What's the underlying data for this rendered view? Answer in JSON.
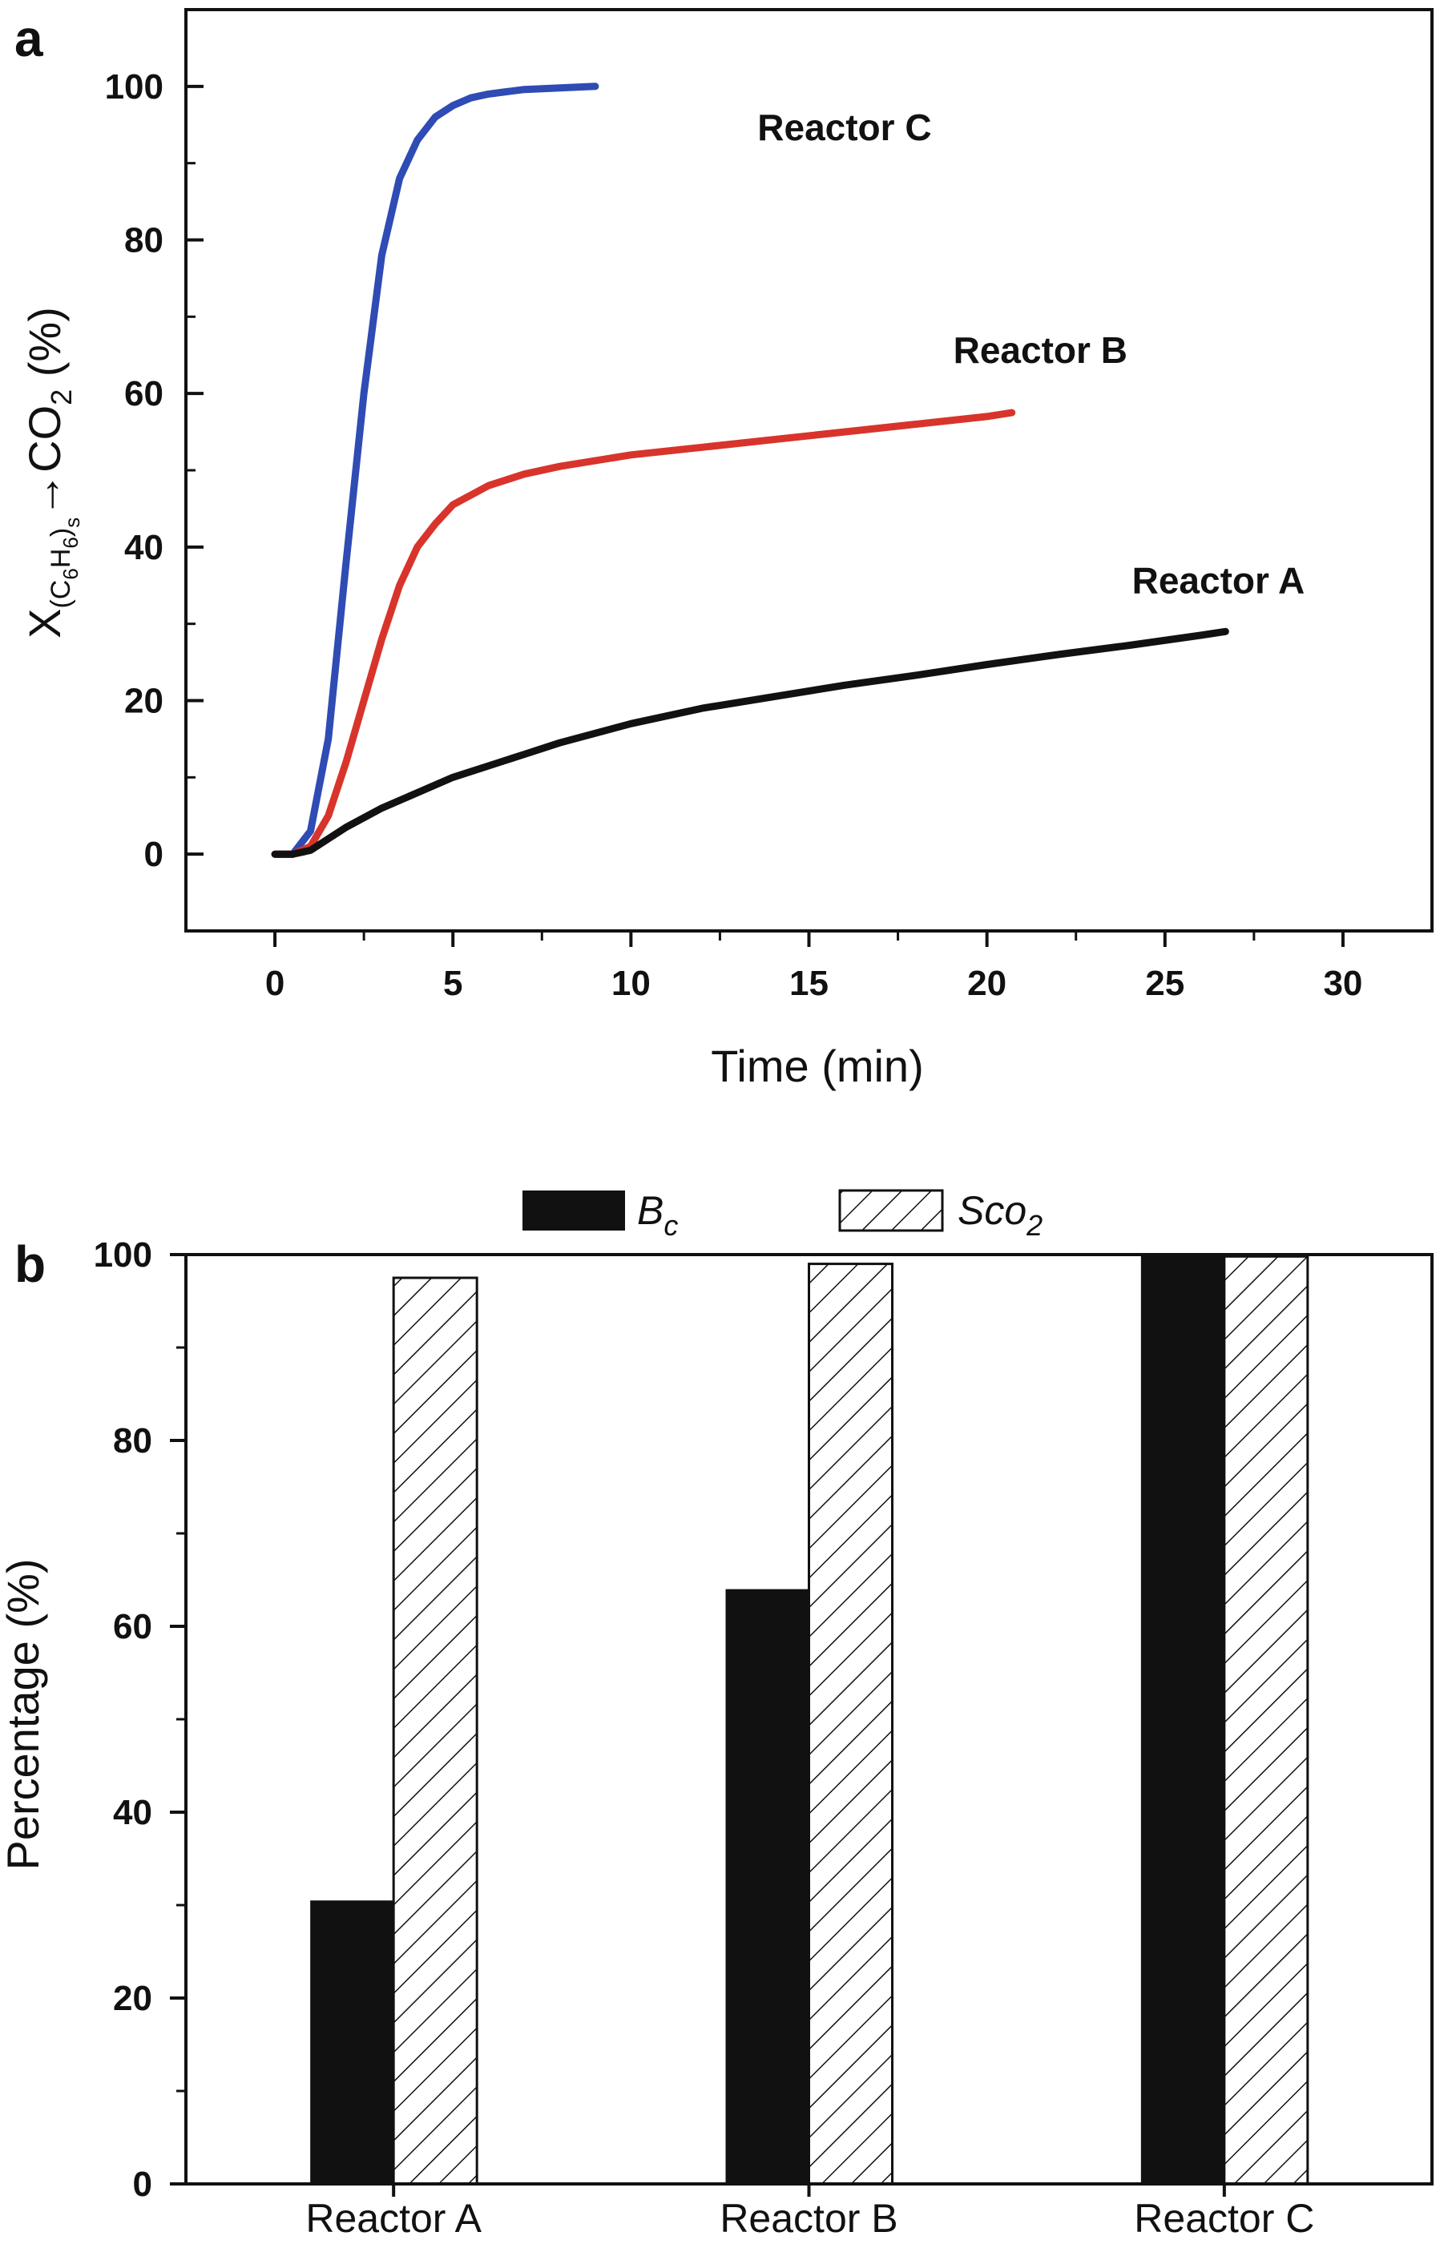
{
  "chart_data": [
    {
      "panel": "a",
      "type": "line",
      "xlabel": "Time (min)",
      "ylabel": {
        "base": "X",
        "sub1": "(C",
        "sub2": "6",
        "sub3": "H",
        "sub4": "6",
        "sub5": ")",
        "sub6": "s",
        "arrow": "→",
        "product": "CO",
        "product_sub": "2",
        "unit": " (%)"
      },
      "xlim": [
        -2.5,
        32.5
      ],
      "ylim": [
        -10,
        110
      ],
      "xticks": [
        0,
        5,
        10,
        15,
        20,
        25,
        30
      ],
      "yticks": [
        0,
        20,
        40,
        60,
        80,
        100
      ],
      "grid": false,
      "series": [
        {
          "name": "Reactor C",
          "color": "#2f4bb4",
          "x": [
            0,
            0.5,
            1.0,
            1.5,
            2.0,
            2.5,
            3.0,
            3.5,
            4.0,
            4.5,
            5.0,
            5.5,
            6.0,
            6.5,
            7.0,
            8.0,
            9.0
          ],
          "y": [
            0,
            0,
            3,
            15,
            38,
            60,
            78,
            88,
            93,
            96,
            97.5,
            98.5,
            99,
            99.3,
            99.6,
            99.8,
            100
          ]
        },
        {
          "name": "Reactor B",
          "color": "#d8342c",
          "x": [
            0,
            0.5,
            1.0,
            1.5,
            2.0,
            2.5,
            3.0,
            3.5,
            4.0,
            4.5,
            5.0,
            6.0,
            7.0,
            8.0,
            10.0,
            12.0,
            14.0,
            16.0,
            18.0,
            20.0,
            20.7
          ],
          "y": [
            0,
            0,
            1,
            5,
            12,
            20,
            28,
            35,
            40,
            43,
            45.5,
            48,
            49.5,
            50.5,
            52,
            53,
            54,
            55,
            56,
            57,
            57.5
          ]
        },
        {
          "name": "Reactor A",
          "color": "#111111",
          "x": [
            0,
            0.5,
            1.0,
            1.5,
            2.0,
            3.0,
            4.0,
            5.0,
            6.0,
            7.0,
            8.0,
            10.0,
            12.0,
            14.0,
            16.0,
            18.0,
            20.0,
            22.0,
            24.0,
            26.0,
            26.7
          ],
          "y": [
            0,
            0,
            0.5,
            2,
            3.5,
            6,
            8,
            10,
            11.5,
            13,
            14.5,
            17,
            19,
            20.5,
            22,
            23.3,
            24.7,
            26,
            27.2,
            28.5,
            29
          ]
        }
      ],
      "annotations": [
        {
          "text": "Reactor C",
          "x": 16,
          "y": 93
        },
        {
          "text": "Reactor B",
          "x": 21.5,
          "y": 64
        },
        {
          "text": "Reactor A",
          "x": 26.5,
          "y": 34
        }
      ]
    },
    {
      "panel": "b",
      "type": "bar",
      "ylabel": "Percentage (%)",
      "categories": [
        "Reactor A",
        "Reactor B",
        "Reactor C"
      ],
      "ylim": [
        0,
        100
      ],
      "yticks": [
        0,
        20,
        40,
        60,
        80,
        100
      ],
      "grid": false,
      "legend_position": "top-center",
      "series": [
        {
          "name": "B",
          "name_sub": "c",
          "fill": "solid",
          "color": "#111111",
          "values": [
            30.5,
            64,
            100
          ]
        },
        {
          "name": "Sco",
          "name_sub": "2",
          "fill": "hatched",
          "color": "#111111",
          "values": [
            97.5,
            99,
            99.8
          ]
        }
      ]
    }
  ]
}
